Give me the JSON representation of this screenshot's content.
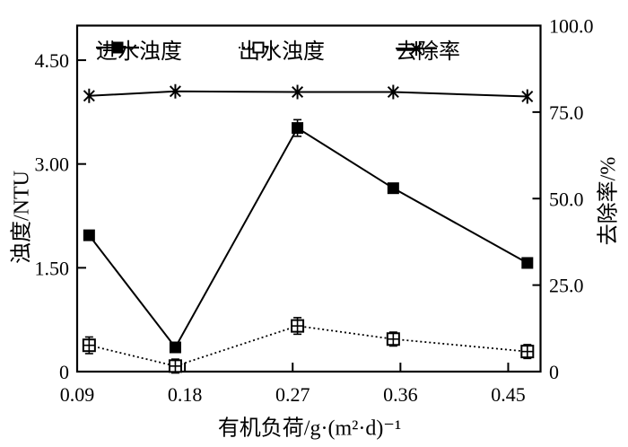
{
  "figure": {
    "background": "#ffffff",
    "ink_color": "#000000"
  },
  "chart_data": {
    "type": "line",
    "title": "",
    "grid": false,
    "legend_position": "top-inside",
    "xlabel": "有机负荷/g·(m²·d)⁻¹",
    "ylabel_left": "浊度/NTU",
    "ylabel_right": "去除率/%",
    "x_axis": {
      "min": 0.09,
      "max": 0.477,
      "tick_values": [
        0.09,
        0.18,
        0.27,
        0.36,
        0.45
      ],
      "tick_labels": [
        "0.09",
        "0.18",
        "0.27",
        "0.36",
        "0.45"
      ]
    },
    "y_axis_left": {
      "min": 0,
      "max": 5.0,
      "tick_values": [
        0,
        1.5,
        3.0,
        4.5
      ],
      "tick_labels": [
        "0",
        "1.50",
        "3.00",
        "4.50"
      ]
    },
    "y_axis_right": {
      "min": 0,
      "max": 100,
      "tick_values": [
        0,
        25,
        50,
        75,
        100
      ],
      "tick_labels": [
        "0",
        "25.0",
        "50.0",
        "75.0",
        "100.0"
      ]
    },
    "x": [
      0.1,
      0.172,
      0.274,
      0.354,
      0.466
    ],
    "series": [
      {
        "name": "进水浊度",
        "axis": "left",
        "marker": "filled-square",
        "line": "solid",
        "values": [
          1.97,
          0.35,
          3.52,
          2.65,
          1.57
        ],
        "yerr": [
          0,
          0,
          0.12,
          0,
          0
        ]
      },
      {
        "name": "出水浊度",
        "axis": "left",
        "marker": "open-square-cross",
        "line": "dotted",
        "values": [
          0.38,
          0.08,
          0.66,
          0.47,
          0.29
        ],
        "yerr": [
          0.12,
          0.1,
          0.12,
          0.1,
          0.1
        ]
      },
      {
        "name": "去除率",
        "axis": "right",
        "marker": "asterisk",
        "line": "solid",
        "values": [
          79.7,
          81.0,
          80.8,
          80.8,
          79.5
        ],
        "yerr": [
          0,
          0,
          0,
          0,
          0
        ]
      }
    ]
  }
}
